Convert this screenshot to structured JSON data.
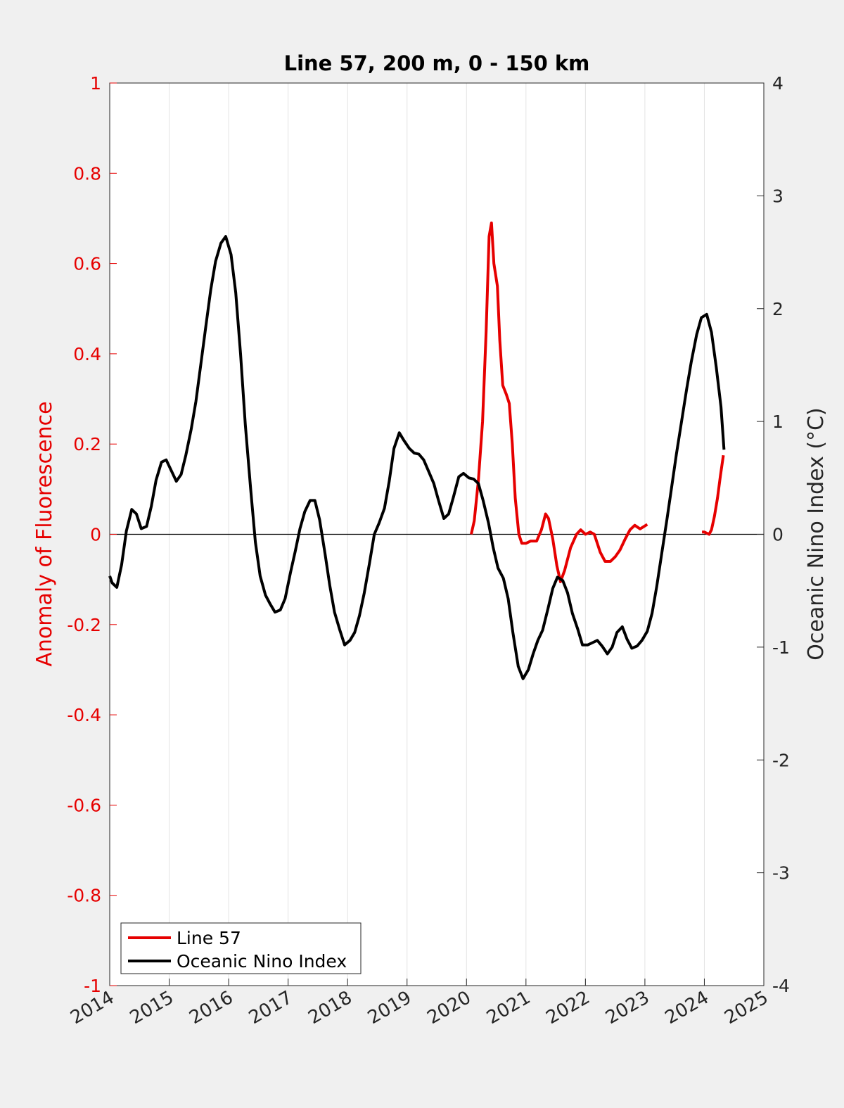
{
  "chart_data": {
    "type": "line",
    "title": "Line 57, 200 m, 0 - 150 km",
    "xlabel": "",
    "ylabel_left": "Anomaly of Fluorescence",
    "ylabel_right": "Oceanic Nino Index (°C)",
    "xlim": [
      2014,
      2025
    ],
    "ylim_left": [
      -1,
      1
    ],
    "ylim_right": [
      -4,
      4
    ],
    "xticks": [
      "2014",
      "2015",
      "2016",
      "2017",
      "2018",
      "2019",
      "2020",
      "2021",
      "2022",
      "2023",
      "2024",
      "2025"
    ],
    "yticks_left": [
      "1",
      "0.8",
      "0.6",
      "0.4",
      "0.2",
      "0",
      "-0.2",
      "-0.4",
      "-0.6",
      "-0.8",
      "-1"
    ],
    "yticks_right": [
      "4",
      "3",
      "2",
      "1",
      "0",
      "-1",
      "-2",
      "-3",
      "-4"
    ],
    "grid": "vertical",
    "legend_position": "bottom-left",
    "colors": {
      "left_axis": "#e60000",
      "line57": "#e60000",
      "oni": "#000000",
      "background": "#ffffff",
      "figure": "#f0f0f0"
    },
    "series": [
      {
        "name": "Line 57",
        "axis": "left",
        "segments": [
          [
            [
              2020.08,
              0.0
            ],
            [
              2020.13,
              0.03
            ],
            [
              2020.2,
              0.12
            ],
            [
              2020.27,
              0.25
            ],
            [
              2020.33,
              0.45
            ],
            [
              2020.38,
              0.66
            ],
            [
              2020.42,
              0.69
            ],
            [
              2020.46,
              0.6
            ],
            [
              2020.52,
              0.55
            ],
            [
              2020.56,
              0.43
            ],
            [
              2020.61,
              0.33
            ],
            [
              2020.67,
              0.31
            ],
            [
              2020.72,
              0.29
            ],
            [
              2020.77,
              0.2
            ],
            [
              2020.82,
              0.08
            ],
            [
              2020.88,
              0.0
            ],
            [
              2020.93,
              -0.02
            ],
            [
              2021.0,
              -0.02
            ],
            [
              2021.08,
              -0.015
            ],
            [
              2021.18,
              -0.015
            ],
            [
              2021.26,
              0.01
            ],
            [
              2021.33,
              0.045
            ],
            [
              2021.38,
              0.035
            ],
            [
              2021.45,
              -0.01
            ],
            [
              2021.52,
              -0.07
            ],
            [
              2021.58,
              -0.105
            ],
            [
              2021.65,
              -0.08
            ],
            [
              2021.75,
              -0.03
            ],
            [
              2021.85,
              0.0
            ],
            [
              2021.92,
              0.01
            ],
            [
              2022.0,
              0.0
            ],
            [
              2022.08,
              0.005
            ],
            [
              2022.15,
              0.0
            ],
            [
              2022.25,
              -0.04
            ],
            [
              2022.33,
              -0.06
            ],
            [
              2022.42,
              -0.06
            ],
            [
              2022.5,
              -0.05
            ],
            [
              2022.58,
              -0.035
            ],
            [
              2022.67,
              -0.01
            ],
            [
              2022.75,
              0.01
            ],
            [
              2022.83,
              0.02
            ],
            [
              2022.92,
              0.012
            ],
            [
              2023.04,
              0.022
            ]
          ],
          [
            [
              2023.96,
              0.005
            ],
            [
              2024.0,
              0.005
            ],
            [
              2024.08,
              0.0
            ],
            [
              2024.12,
              0.01
            ],
            [
              2024.17,
              0.04
            ],
            [
              2024.22,
              0.08
            ],
            [
              2024.27,
              0.13
            ],
            [
              2024.32,
              0.175
            ]
          ]
        ]
      },
      {
        "name": "Oceanic Nino Index",
        "axis": "right",
        "segments": [
          [
            [
              2014.0,
              -0.37
            ],
            [
              2014.04,
              -0.43
            ],
            [
              2014.12,
              -0.47
            ],
            [
              2014.2,
              -0.27
            ],
            [
              2014.28,
              0.03
            ],
            [
              2014.37,
              0.22
            ],
            [
              2014.45,
              0.18
            ],
            [
              2014.53,
              0.05
            ],
            [
              2014.62,
              0.07
            ],
            [
              2014.7,
              0.25
            ],
            [
              2014.78,
              0.48
            ],
            [
              2014.87,
              0.64
            ],
            [
              2014.95,
              0.66
            ],
            [
              2015.04,
              0.56
            ],
            [
              2015.12,
              0.47
            ],
            [
              2015.2,
              0.53
            ],
            [
              2015.28,
              0.7
            ],
            [
              2015.37,
              0.93
            ],
            [
              2015.45,
              1.18
            ],
            [
              2015.53,
              1.5
            ],
            [
              2015.62,
              1.86
            ],
            [
              2015.7,
              2.17
            ],
            [
              2015.78,
              2.42
            ],
            [
              2015.87,
              2.58
            ],
            [
              2015.95,
              2.64
            ],
            [
              2016.04,
              2.48
            ],
            [
              2016.12,
              2.14
            ],
            [
              2016.2,
              1.6
            ],
            [
              2016.28,
              0.97
            ],
            [
              2016.37,
              0.4
            ],
            [
              2016.45,
              -0.07
            ],
            [
              2016.53,
              -0.37
            ],
            [
              2016.62,
              -0.54
            ],
            [
              2016.7,
              -0.62
            ],
            [
              2016.78,
              -0.69
            ],
            [
              2016.87,
              -0.67
            ],
            [
              2016.95,
              -0.57
            ],
            [
              2017.04,
              -0.34
            ],
            [
              2017.12,
              -0.15
            ],
            [
              2017.2,
              0.05
            ],
            [
              2017.28,
              0.2
            ],
            [
              2017.37,
              0.3
            ],
            [
              2017.45,
              0.3
            ],
            [
              2017.53,
              0.13
            ],
            [
              2017.62,
              -0.17
            ],
            [
              2017.7,
              -0.45
            ],
            [
              2017.78,
              -0.69
            ],
            [
              2017.87,
              -0.85
            ],
            [
              2017.95,
              -0.98
            ],
            [
              2018.04,
              -0.94
            ],
            [
              2018.12,
              -0.87
            ],
            [
              2018.2,
              -0.72
            ],
            [
              2018.28,
              -0.52
            ],
            [
              2018.37,
              -0.25
            ],
            [
              2018.45,
              0.0
            ],
            [
              2018.53,
              0.1
            ],
            [
              2018.62,
              0.23
            ],
            [
              2018.7,
              0.47
            ],
            [
              2018.78,
              0.76
            ],
            [
              2018.87,
              0.9
            ],
            [
              2018.95,
              0.83
            ],
            [
              2019.04,
              0.76
            ],
            [
              2019.12,
              0.72
            ],
            [
              2019.2,
              0.71
            ],
            [
              2019.28,
              0.66
            ],
            [
              2019.37,
              0.55
            ],
            [
              2019.45,
              0.45
            ],
            [
              2019.53,
              0.3
            ],
            [
              2019.62,
              0.14
            ],
            [
              2019.7,
              0.18
            ],
            [
              2019.78,
              0.33
            ],
            [
              2019.87,
              0.51
            ],
            [
              2019.95,
              0.54
            ],
            [
              2020.04,
              0.5
            ],
            [
              2020.12,
              0.49
            ],
            [
              2020.2,
              0.45
            ],
            [
              2020.28,
              0.3
            ],
            [
              2020.37,
              0.1
            ],
            [
              2020.45,
              -0.12
            ],
            [
              2020.53,
              -0.3
            ],
            [
              2020.62,
              -0.39
            ],
            [
              2020.7,
              -0.57
            ],
            [
              2020.78,
              -0.87
            ],
            [
              2020.87,
              -1.17
            ],
            [
              2020.95,
              -1.28
            ],
            [
              2021.04,
              -1.2
            ],
            [
              2021.12,
              -1.06
            ],
            [
              2021.2,
              -0.94
            ],
            [
              2021.28,
              -0.85
            ],
            [
              2021.37,
              -0.66
            ],
            [
              2021.45,
              -0.48
            ],
            [
              2021.53,
              -0.38
            ],
            [
              2021.62,
              -0.41
            ],
            [
              2021.7,
              -0.52
            ],
            [
              2021.78,
              -0.7
            ],
            [
              2021.87,
              -0.84
            ],
            [
              2021.95,
              -0.98
            ],
            [
              2022.04,
              -0.98
            ],
            [
              2022.12,
              -0.96
            ],
            [
              2022.2,
              -0.94
            ],
            [
              2022.28,
              -0.99
            ],
            [
              2022.37,
              -1.06
            ],
            [
              2022.45,
              -1.0
            ],
            [
              2022.53,
              -0.87
            ],
            [
              2022.62,
              -0.82
            ],
            [
              2022.7,
              -0.93
            ],
            [
              2022.78,
              -1.01
            ],
            [
              2022.87,
              -0.99
            ],
            [
              2022.95,
              -0.94
            ],
            [
              2023.04,
              -0.86
            ],
            [
              2023.12,
              -0.7
            ],
            [
              2023.2,
              -0.46
            ],
            [
              2023.28,
              -0.18
            ],
            [
              2023.37,
              0.13
            ],
            [
              2023.45,
              0.42
            ],
            [
              2023.53,
              0.71
            ],
            [
              2023.62,
              1.01
            ],
            [
              2023.7,
              1.28
            ],
            [
              2023.78,
              1.53
            ],
            [
              2023.87,
              1.77
            ],
            [
              2023.95,
              1.92
            ],
            [
              2024.04,
              1.95
            ],
            [
              2024.12,
              1.79
            ],
            [
              2024.2,
              1.48
            ],
            [
              2024.28,
              1.13
            ],
            [
              2024.33,
              0.75
            ]
          ]
        ]
      }
    ]
  }
}
